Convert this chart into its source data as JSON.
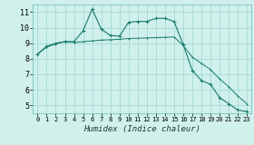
{
  "xlabel": "Humidex (Indice chaleur)",
  "bg_color": "#cff0eb",
  "grid_color": "#aaddd8",
  "line_color": "#1a7a6e",
  "xlim": [
    -0.5,
    23.5
  ],
  "ylim": [
    4.5,
    11.5
  ],
  "xticks": [
    0,
    1,
    2,
    3,
    4,
    5,
    6,
    7,
    8,
    9,
    10,
    11,
    12,
    13,
    14,
    15,
    16,
    17,
    18,
    19,
    20,
    21,
    22,
    23
  ],
  "yticks": [
    5,
    6,
    7,
    8,
    9,
    10,
    11
  ],
  "line1_x": [
    0,
    1,
    2,
    3,
    4,
    5,
    6,
    7,
    8,
    9,
    10,
    11,
    12,
    13,
    14,
    15,
    16,
    17,
    18,
    19,
    20,
    21,
    22,
    23
  ],
  "line1_y": [
    8.3,
    8.8,
    9.0,
    9.1,
    9.1,
    9.8,
    11.2,
    9.9,
    9.5,
    9.45,
    10.35,
    10.4,
    10.4,
    10.6,
    10.6,
    10.4,
    8.9,
    7.25,
    6.6,
    6.35,
    5.5,
    5.1,
    4.7,
    4.6
  ],
  "line2_x": [
    0,
    1,
    2,
    3,
    4,
    5,
    6,
    7,
    8,
    9,
    10,
    11,
    12,
    13,
    14,
    15,
    16,
    17,
    18,
    19,
    20,
    21,
    22,
    23
  ],
  "line2_y": [
    8.3,
    8.75,
    8.95,
    9.1,
    9.05,
    9.1,
    9.15,
    9.2,
    9.22,
    9.25,
    9.3,
    9.32,
    9.34,
    9.36,
    9.38,
    9.4,
    8.85,
    8.1,
    7.7,
    7.3,
    6.7,
    6.2,
    5.6,
    5.1
  ]
}
